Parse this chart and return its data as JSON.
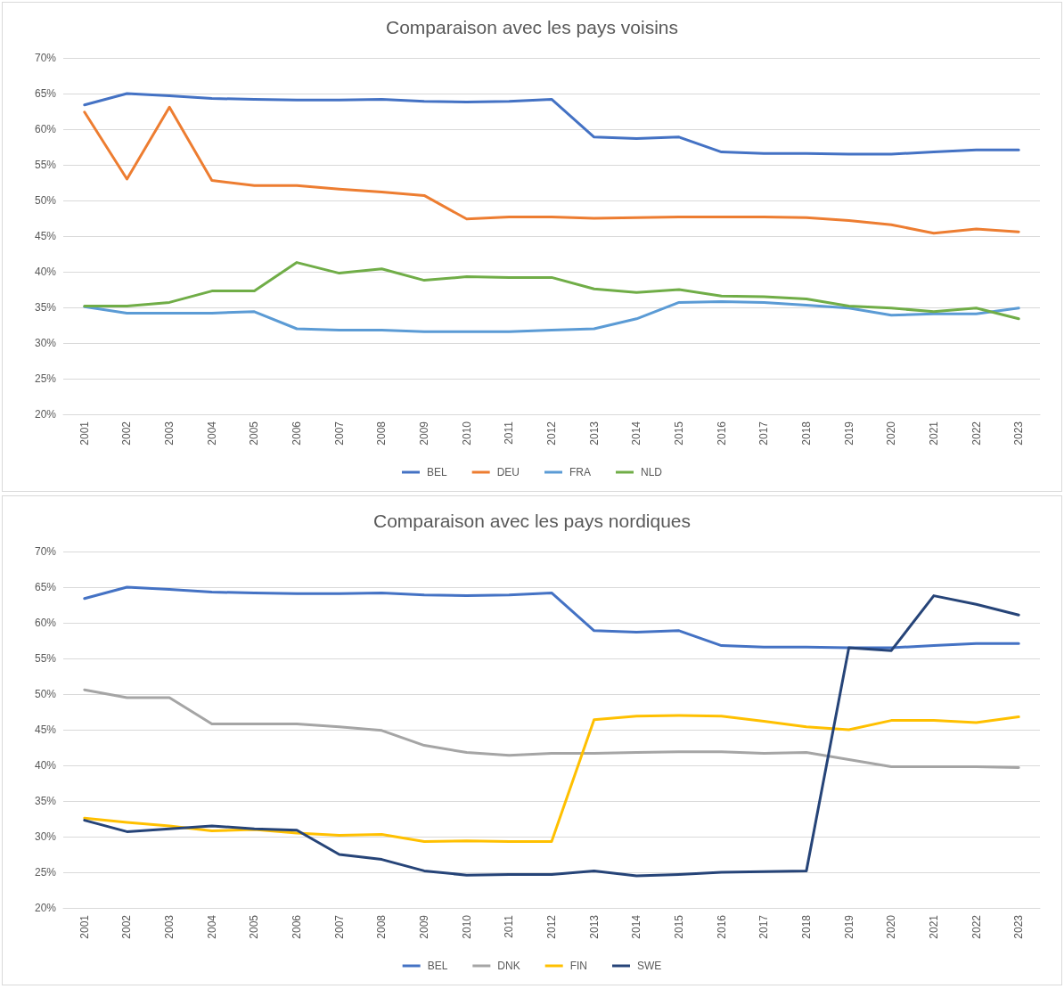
{
  "chart_data": [
    {
      "type": "line",
      "title": "Comparaison avec les pays voisins",
      "categories": [
        "2001",
        "2002",
        "2003",
        "2004",
        "2005",
        "2006",
        "2007",
        "2008",
        "2009",
        "2010",
        "2011",
        "2012",
        "2013",
        "2014",
        "2015",
        "2016",
        "2017",
        "2018",
        "2019",
        "2020",
        "2021",
        "2022",
        "2023"
      ],
      "series": [
        {
          "name": "BEL",
          "color": "#4472c4",
          "values": [
            63.4,
            65.0,
            64.7,
            64.3,
            64.2,
            64.1,
            64.1,
            64.2,
            63.9,
            63.8,
            63.9,
            64.2,
            58.9,
            58.7,
            58.9,
            56.8,
            56.6,
            56.6,
            56.5,
            56.5,
            56.8,
            57.1,
            57.1
          ]
        },
        {
          "name": "DEU",
          "color": "#ed7d31",
          "values": [
            62.4,
            53.0,
            63.1,
            52.8,
            52.1,
            52.1,
            51.6,
            51.2,
            50.7,
            47.4,
            47.7,
            47.7,
            47.5,
            47.6,
            47.7,
            47.7,
            47.7,
            47.6,
            47.2,
            46.6,
            45.4,
            46.0,
            45.6
          ]
        },
        {
          "name": "FRA",
          "color": "#5b9bd5",
          "values": [
            35.1,
            34.2,
            34.2,
            34.2,
            34.4,
            32.0,
            31.8,
            31.8,
            31.6,
            31.6,
            31.6,
            31.8,
            32.0,
            33.4,
            35.7,
            35.8,
            35.7,
            35.3,
            34.9,
            33.9,
            34.1,
            34.1,
            34.9
          ]
        },
        {
          "name": "NLD",
          "color": "#70ad47",
          "values": [
            35.2,
            35.2,
            35.7,
            37.3,
            37.3,
            41.3,
            39.8,
            40.4,
            38.8,
            39.3,
            39.2,
            39.2,
            37.6,
            37.1,
            37.5,
            36.6,
            36.5,
            36.2,
            35.2,
            34.9,
            34.4,
            34.9,
            33.4
          ]
        }
      ],
      "ylim": [
        20,
        70
      ],
      "yticks": [
        {
          "value": 20,
          "label": "20%"
        },
        {
          "value": 25,
          "label": "25%"
        },
        {
          "value": 30,
          "label": "30%"
        },
        {
          "value": 35,
          "label": "35%"
        },
        {
          "value": 40,
          "label": "40%"
        },
        {
          "value": 45,
          "label": "45%"
        },
        {
          "value": 50,
          "label": "50%"
        },
        {
          "value": 55,
          "label": "55%"
        },
        {
          "value": 60,
          "label": "60%"
        },
        {
          "value": 65,
          "label": "65%"
        },
        {
          "value": 70,
          "label": "70%"
        }
      ],
      "grid": "y",
      "legend": "bottom",
      "marker": "none",
      "line_style": "solid"
    },
    {
      "type": "line",
      "title": "Comparaison avec les pays nordiques",
      "categories": [
        "2001",
        "2002",
        "2003",
        "2004",
        "2005",
        "2006",
        "2007",
        "2008",
        "2009",
        "2010",
        "2011",
        "2012",
        "2013",
        "2014",
        "2015",
        "2016",
        "2017",
        "2018",
        "2019",
        "2020",
        "2021",
        "2022",
        "2023"
      ],
      "series": [
        {
          "name": "BEL",
          "color": "#4472c4",
          "values": [
            63.4,
            65.0,
            64.7,
            64.3,
            64.2,
            64.1,
            64.1,
            64.2,
            63.9,
            63.8,
            63.9,
            64.2,
            58.9,
            58.7,
            58.9,
            56.8,
            56.6,
            56.6,
            56.5,
            56.5,
            56.8,
            57.1,
            57.1
          ]
        },
        {
          "name": "DNK",
          "color": "#a5a5a5",
          "values": [
            50.6,
            49.5,
            49.5,
            45.8,
            45.8,
            45.8,
            45.4,
            44.9,
            42.8,
            41.8,
            41.4,
            41.7,
            41.7,
            41.8,
            41.9,
            41.9,
            41.7,
            41.8,
            40.8,
            39.8,
            39.8,
            39.8,
            39.7
          ]
        },
        {
          "name": "FIN",
          "color": "#ffc000",
          "values": [
            32.6,
            32.0,
            31.5,
            30.8,
            31.0,
            30.5,
            30.2,
            30.3,
            29.3,
            29.4,
            29.3,
            29.3,
            46.4,
            46.9,
            47.0,
            46.9,
            46.2,
            45.4,
            45.0,
            46.3,
            46.3,
            46.0,
            46.8
          ]
        },
        {
          "name": "SWE",
          "color": "#264478",
          "values": [
            32.3,
            30.7,
            31.1,
            31.5,
            31.1,
            30.9,
            27.5,
            26.8,
            25.2,
            24.6,
            24.7,
            24.7,
            25.2,
            24.5,
            24.7,
            25.0,
            25.1,
            25.2,
            56.5,
            56.1,
            63.8,
            62.6,
            61.1
          ]
        }
      ],
      "ylim": [
        20,
        70
      ],
      "yticks": [
        {
          "value": 20,
          "label": "20%"
        },
        {
          "value": 25,
          "label": "25%"
        },
        {
          "value": 30,
          "label": "30%"
        },
        {
          "value": 35,
          "label": "35%"
        },
        {
          "value": 40,
          "label": "40%"
        },
        {
          "value": 45,
          "label": "45%"
        },
        {
          "value": 50,
          "label": "50%"
        },
        {
          "value": 55,
          "label": "55%"
        },
        {
          "value": 60,
          "label": "60%"
        },
        {
          "value": 65,
          "label": "65%"
        },
        {
          "value": 70,
          "label": "70%"
        }
      ],
      "grid": "y",
      "legend": "bottom",
      "marker": "none",
      "line_style": "solid"
    }
  ]
}
